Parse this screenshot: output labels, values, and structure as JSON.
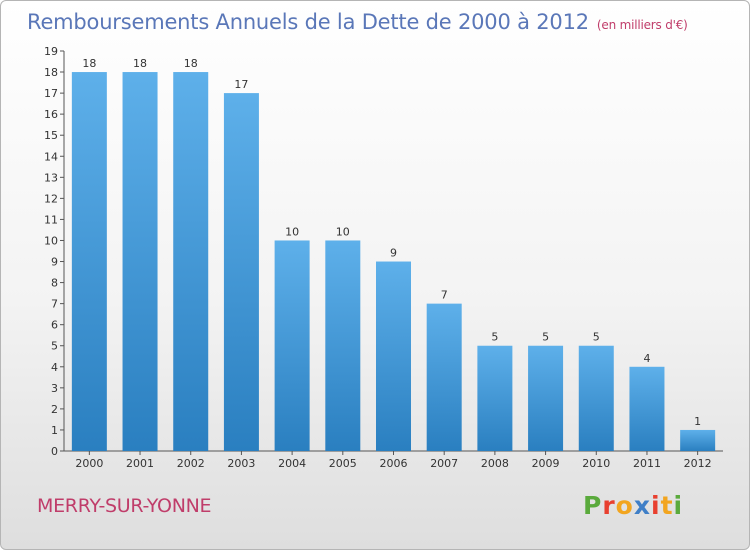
{
  "title": "Remboursements Annuels de la Dette de 2000 à 2012",
  "subtitle": "(en milliers d'€)",
  "commune": "MERRY-SUR-YONNE",
  "logo": {
    "letters": [
      "P",
      "r",
      "o",
      "x",
      "i",
      "t",
      "i"
    ],
    "colors": [
      "#5aaa3c",
      "#e8402f",
      "#f2a51f",
      "#3f7fc7",
      "#e8402f",
      "#f2a51f",
      "#5aaa3c"
    ]
  },
  "colors": {
    "bar_light": "#5eb0ea",
    "bar_dark": "#2a7fc0",
    "title": "#5a77b8",
    "accent": "#c03d6a"
  },
  "chart_data": {
    "type": "bar",
    "categories": [
      "2000",
      "2001",
      "2002",
      "2003",
      "2004",
      "2005",
      "2006",
      "2007",
      "2008",
      "2009",
      "2010",
      "2011",
      "2012"
    ],
    "values": [
      18,
      18,
      18,
      17,
      10,
      10,
      9,
      7,
      5,
      5,
      5,
      4,
      1
    ],
    "value_labels": [
      "18",
      "18",
      "18",
      "17",
      "10",
      "10",
      "9",
      "7",
      "5",
      "5",
      "5",
      "4",
      "1"
    ],
    "ylim": [
      0,
      19
    ],
    "yticks": [
      "0",
      "1",
      "2",
      "3",
      "4",
      "5",
      "6",
      "7",
      "8",
      "9",
      "10",
      "11",
      "12",
      "13",
      "14",
      "15",
      "16",
      "17",
      "18",
      "19"
    ],
    "grid": false,
    "legend": "none"
  }
}
